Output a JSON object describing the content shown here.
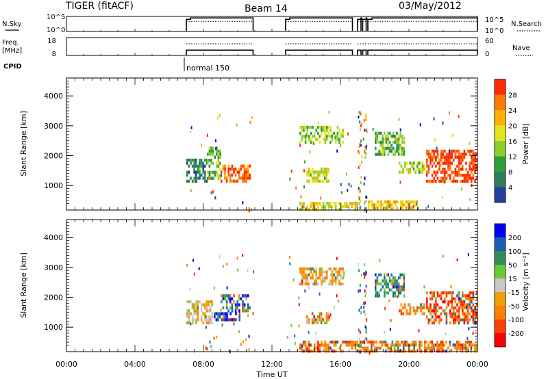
{
  "header": {
    "title": "TIGER (fitACF)",
    "beam": "Beam 14",
    "date": "03/May/2012"
  },
  "left_labels": {
    "nsky": "N.Sky",
    "freq": "Freq.",
    "freq_unit": "[MHz]",
    "cpid": "CPID"
  },
  "right_labels": {
    "nsearch": "N.Search",
    "nave": "Nave"
  },
  "cpid_text": "normal 150",
  "noise_ticks_left": [
    "10^5",
    "10^0"
  ],
  "noise_ticks_right": [
    "10^5",
    "10^0"
  ],
  "freq_ticks_left": [
    "18",
    "8"
  ],
  "freq_ticks_right": [
    "60",
    "0"
  ],
  "power_colorbar": {
    "label": "Power [dB]",
    "ticks": [
      "28",
      "24",
      "20",
      "16",
      "12",
      "8",
      "4"
    ]
  },
  "velocity_colorbar": {
    "label": "Velocity [m s⁻¹]",
    "ticks": [
      "200",
      "100",
      "50",
      "15",
      "-15",
      "-50",
      "-100",
      "-200"
    ]
  },
  "chart_data": [
    {
      "type": "line",
      "panel": "noise",
      "ylabel": "N.Sky",
      "y2label": "N.Search",
      "ylim": [
        0,
        5
      ],
      "yscale": "log10",
      "xlim": [
        0,
        24
      ],
      "data_segments_hours": [
        [
          7.0,
          10.9
        ],
        [
          12.8,
          16.7
        ],
        [
          17.0,
          17.2
        ],
        [
          17.3,
          17.5
        ],
        [
          17.6,
          24.0
        ]
      ],
      "approx_level_log10": 4.5
    },
    {
      "type": "line",
      "panel": "frequency",
      "ylabel": "Freq. [MHz]",
      "y2label": "Nave",
      "ylim": [
        8,
        18
      ],
      "y2lim": [
        0,
        60
      ],
      "xlim": [
        0,
        24
      ],
      "series": [
        {
          "name": "Freq. [MHz]",
          "approx_value": 12.5
        },
        {
          "name": "Nave",
          "approx_value": 30
        }
      ]
    },
    {
      "type": "heatmap",
      "panel": "power",
      "xlabel": "",
      "ylabel": "Slant Range [km]",
      "xlim": [
        0,
        24
      ],
      "ylim": [
        180,
        4600
      ],
      "y_ticks": [
        "4000",
        "3000",
        "2000",
        "1000"
      ],
      "colorbar": "Power [dB]",
      "crange": [
        0,
        32
      ],
      "regions": [
        {
          "x": [
            7.0,
            8.2
          ],
          "y": [
            1100,
            1900
          ],
          "value": 10
        },
        {
          "x": [
            8.2,
            9.0
          ],
          "y": [
            1200,
            2300
          ],
          "value": 14
        },
        {
          "x": [
            9.0,
            10.8
          ],
          "y": [
            1100,
            1700
          ],
          "value": 28
        },
        {
          "x": [
            13.6,
            16.2
          ],
          "y": [
            2400,
            3000
          ],
          "value": 16
        },
        {
          "x": [
            14.0,
            15.4
          ],
          "y": [
            1100,
            1600
          ],
          "value": 18
        },
        {
          "x": [
            13.6,
            17.0
          ],
          "y": [
            180,
            450
          ],
          "value": 20
        },
        {
          "x": [
            17.6,
            20.5
          ],
          "y": [
            180,
            500
          ],
          "value": 22
        },
        {
          "x": [
            18.0,
            19.8
          ],
          "y": [
            2000,
            2800
          ],
          "value": 14
        },
        {
          "x": [
            19.4,
            21.0
          ],
          "y": [
            1400,
            1800
          ],
          "value": 18
        },
        {
          "x": [
            21.0,
            24.0
          ],
          "y": [
            1100,
            2200
          ],
          "value": 30
        }
      ]
    },
    {
      "type": "heatmap",
      "panel": "velocity",
      "xlabel": "Time UT",
      "ylabel": "Slant Range [km]",
      "xlim": [
        0,
        24
      ],
      "ylim": [
        180,
        4600
      ],
      "x_ticks": [
        "00:00",
        "04:00",
        "08:00",
        "12:00",
        "16:00",
        "20:00",
        "00:00"
      ],
      "y_ticks": [
        "4000",
        "3000",
        "2000",
        "1000"
      ],
      "colorbar": "Velocity [m s⁻¹]",
      "crange": [
        -250,
        250
      ],
      "regions": [
        {
          "x": [
            7.0,
            8.6
          ],
          "y": [
            1100,
            1900
          ],
          "value": -50
        },
        {
          "x": [
            8.6,
            10.2
          ],
          "y": [
            1200,
            1500
          ],
          "value": 200
        },
        {
          "x": [
            9.0,
            10.8
          ],
          "y": [
            1500,
            2100
          ],
          "value": 150
        },
        {
          "x": [
            13.6,
            16.2
          ],
          "y": [
            2400,
            3000
          ],
          "value": -60
        },
        {
          "x": [
            14.0,
            15.4
          ],
          "y": [
            1100,
            1500
          ],
          "value": -80
        },
        {
          "x": [
            13.6,
            24.0
          ],
          "y": [
            180,
            550
          ],
          "value": -120
        },
        {
          "x": [
            18.0,
            19.8
          ],
          "y": [
            2000,
            2800
          ],
          "value": 120
        },
        {
          "x": [
            19.4,
            21.0
          ],
          "y": [
            1400,
            1800
          ],
          "value": -100
        },
        {
          "x": [
            21.0,
            24.0
          ],
          "y": [
            1100,
            2200
          ],
          "value": -150
        }
      ]
    }
  ]
}
